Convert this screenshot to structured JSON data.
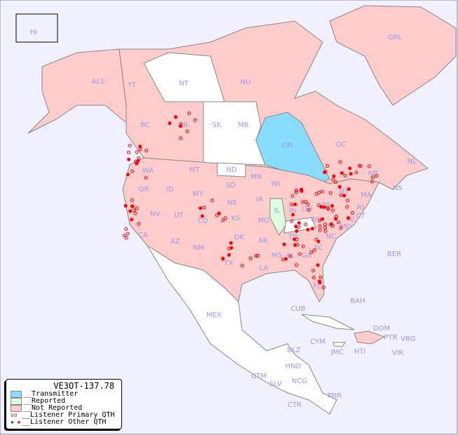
{
  "map": {
    "background": "#f0f0ff",
    "colors": {
      "transmitter": "#88ddff",
      "reported": "#ddffdd",
      "not_reported": "#ffcccc",
      "no_data": "#ffffff",
      "listener": "#ff0000"
    },
    "region_labels": [
      "HI",
      "GRL",
      "ALS",
      "YT",
      "NT",
      "NU",
      "BC",
      "AB",
      "SK",
      "MB",
      "ON",
      "QC",
      "NL",
      "NS",
      "NB",
      "WA",
      "MT",
      "ND",
      "MN",
      "ID",
      "SD",
      "WI",
      "OR",
      "WY",
      "IA",
      "MI",
      "NE",
      "PA",
      "NY",
      "MA",
      "RI",
      "CT",
      "NJ",
      "MD",
      "NV",
      "UT",
      "CO",
      "KS",
      "MO",
      "IL",
      "IN",
      "OH",
      "WV",
      "KY",
      "VA",
      "CA",
      "AZ",
      "NM",
      "OK",
      "AR",
      "TN",
      "NC",
      "SC",
      "MS",
      "AL",
      "GA",
      "TX",
      "LA",
      "FL",
      "BER",
      "BAH",
      "CUB",
      "MEX",
      "DOM",
      "PTR",
      "VRG",
      "CYM",
      "JMC",
      "HTI",
      "VIR",
      "BLZ",
      "HND",
      "GTM",
      "SLV",
      "NCG",
      "CTR",
      "PNR"
    ]
  },
  "legend": {
    "title": "VE3OT-137.78",
    "items": [
      "__Transmitter",
      "__Reported",
      "__Not Reported",
      "__Listener Primary QTH",
      "__Listener Other QTH"
    ]
  }
}
